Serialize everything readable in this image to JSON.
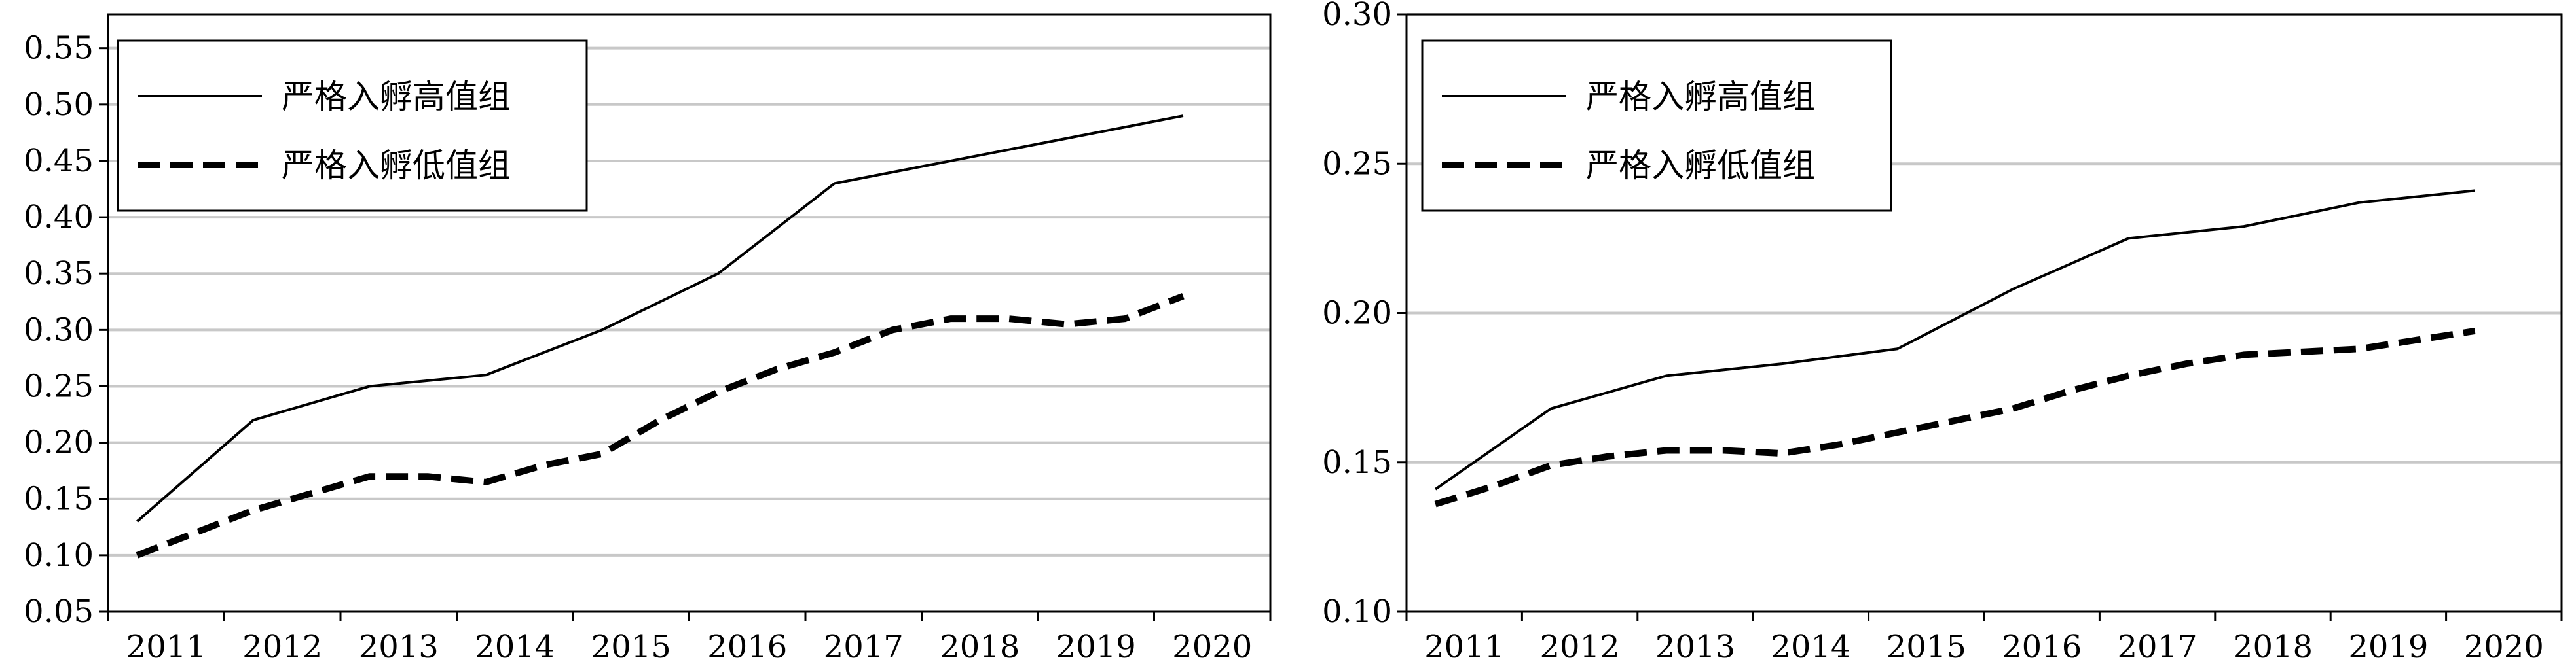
{
  "chart_data": [
    {
      "type": "line",
      "categories": [
        "2011",
        "2012",
        "2013",
        "2014",
        "2015",
        "2016",
        "2017",
        "2018",
        "2019",
        "2020"
      ],
      "ylim": [
        0.05,
        0.58
      ],
      "yticks": [
        "0.05",
        "0.10",
        "0.15",
        "0.20",
        "0.25",
        "0.30",
        "0.35",
        "0.40",
        "0.45",
        "0.50",
        "0.55"
      ],
      "grid": "horizontal",
      "legend": "top-left",
      "series": [
        {
          "name": "严格入孵高值组",
          "style": "solid",
          "x": [
            0.25,
            1.25,
            2.25,
            3.25,
            4.25,
            5.25,
            6.25,
            7.25,
            8.25,
            9.25
          ],
          "values": [
            0.13,
            0.22,
            0.25,
            0.26,
            0.3,
            0.35,
            0.43,
            0.45,
            0.47,
            0.49
          ]
        },
        {
          "name": "严格入孵低值组",
          "style": "dashed",
          "x": [
            0.25,
            0.75,
            1.25,
            1.75,
            2.25,
            2.75,
            3.25,
            3.75,
            4.25,
            4.75,
            5.25,
            5.75,
            6.25,
            6.75,
            7.25,
            7.75,
            8.25,
            8.75,
            9.25
          ],
          "values": [
            0.1,
            0.12,
            0.14,
            0.155,
            0.17,
            0.17,
            0.165,
            0.18,
            0.19,
            0.22,
            0.245,
            0.265,
            0.28,
            0.3,
            0.31,
            0.31,
            0.305,
            0.31,
            0.33
          ]
        }
      ]
    },
    {
      "type": "line",
      "categories": [
        "2011",
        "2012",
        "2013",
        "2014",
        "2015",
        "2016",
        "2017",
        "2018",
        "2019",
        "2020"
      ],
      "ylim": [
        0.1,
        0.3
      ],
      "yticks": [
        "0.10",
        "0.15",
        "0.20",
        "0.25",
        "0.30"
      ],
      "grid": "horizontal",
      "legend": "top-left",
      "series": [
        {
          "name": "严格入孵高值组",
          "style": "solid",
          "x": [
            0.25,
            1.25,
            2.25,
            3.25,
            4.25,
            5.25,
            6.25,
            7.25,
            8.25,
            9.25
          ],
          "values": [
            0.141,
            0.168,
            0.179,
            0.183,
            0.188,
            0.208,
            0.225,
            0.229,
            0.237,
            0.241
          ]
        },
        {
          "name": "严格入孵低值组",
          "style": "dashed",
          "x": [
            0.25,
            0.75,
            1.25,
            1.75,
            2.25,
            2.75,
            3.25,
            3.75,
            4.25,
            4.75,
            5.25,
            5.75,
            6.25,
            6.75,
            7.25,
            7.75,
            8.25,
            8.75,
            9.25
          ],
          "values": [
            0.136,
            0.142,
            0.149,
            0.152,
            0.154,
            0.154,
            0.153,
            0.156,
            0.16,
            0.164,
            0.168,
            0.174,
            0.179,
            0.183,
            0.186,
            0.187,
            0.188,
            0.191,
            0.194
          ]
        }
      ]
    }
  ]
}
